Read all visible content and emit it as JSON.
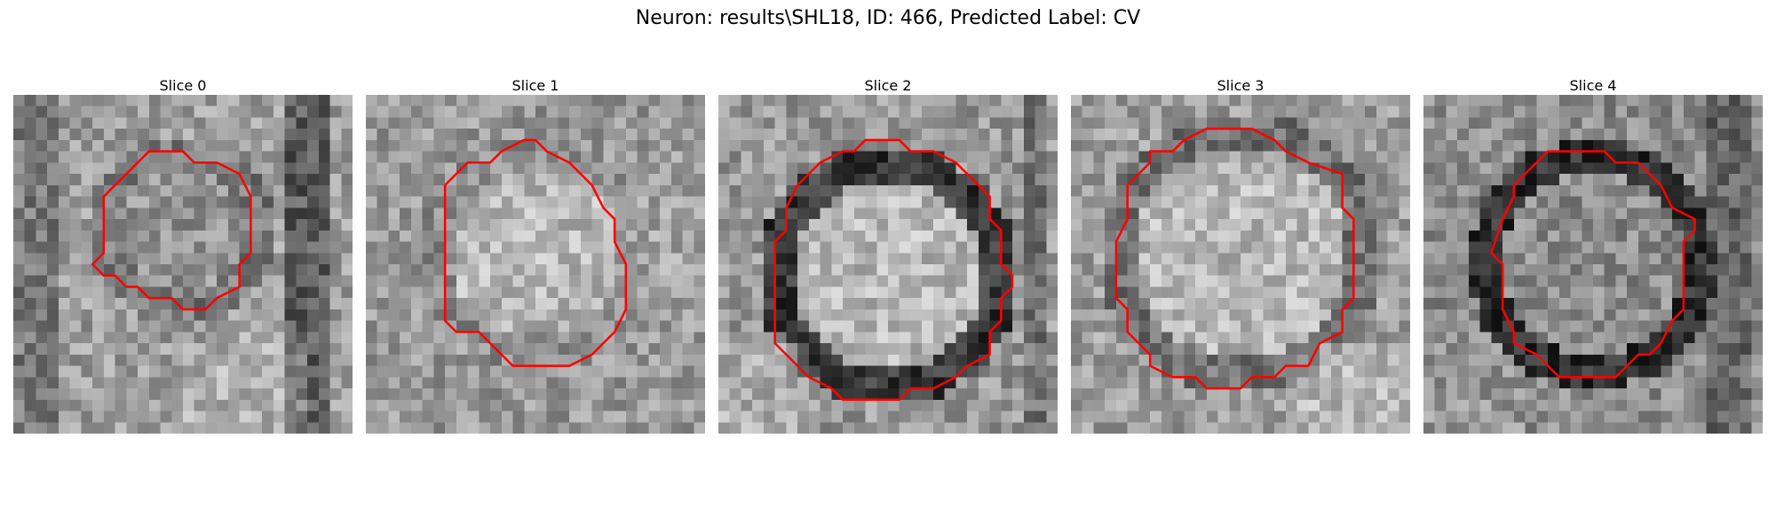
{
  "figure": {
    "title": "Neuron: results\\SHL18, ID: 466, Predicted Label: CV"
  },
  "grid_size": 30,
  "contour_color": "#ff0000",
  "slices": [
    {
      "label": "Slice 0",
      "texture": "dark vertical band on the right, dim background",
      "contour": [
        [
          12,
          5
        ],
        [
          15,
          5
        ],
        [
          16,
          6
        ],
        [
          18,
          6
        ],
        [
          20,
          7
        ],
        [
          21,
          9
        ],
        [
          21,
          12
        ],
        [
          21,
          14
        ],
        [
          20,
          15
        ],
        [
          20,
          17
        ],
        [
          18,
          18
        ],
        [
          17,
          19
        ],
        [
          15,
          19
        ],
        [
          14,
          18
        ],
        [
          12,
          18
        ],
        [
          11,
          17
        ],
        [
          10,
          17
        ],
        [
          9,
          16
        ],
        [
          8,
          16
        ],
        [
          7,
          15
        ],
        [
          8,
          14
        ],
        [
          8,
          12
        ],
        [
          8,
          9
        ],
        [
          9,
          8
        ],
        [
          10,
          7
        ],
        [
          11,
          6
        ]
      ]
    },
    {
      "label": "Slice 1",
      "texture": "bright cell interior, mottled surroundings",
      "contour": [
        [
          14,
          4
        ],
        [
          15,
          4
        ],
        [
          16,
          5
        ],
        [
          18,
          6
        ],
        [
          19,
          7
        ],
        [
          20,
          8
        ],
        [
          21,
          10
        ],
        [
          22,
          11
        ],
        [
          22,
          13
        ],
        [
          23,
          15
        ],
        [
          23,
          19
        ],
        [
          22,
          21
        ],
        [
          21,
          22
        ],
        [
          20,
          23
        ],
        [
          18,
          24
        ],
        [
          16,
          24
        ],
        [
          13,
          24
        ],
        [
          12,
          23
        ],
        [
          11,
          22
        ],
        [
          10,
          21
        ],
        [
          8,
          21
        ],
        [
          7,
          20
        ],
        [
          7,
          17
        ],
        [
          7,
          12
        ],
        [
          7,
          8
        ],
        [
          8,
          7
        ],
        [
          9,
          6
        ],
        [
          11,
          6
        ],
        [
          12,
          5
        ]
      ]
    },
    {
      "label": "Slice 2",
      "texture": "dark ring around a bright interior",
      "contour": [
        [
          13,
          4
        ],
        [
          16,
          4
        ],
        [
          17,
          5
        ],
        [
          19,
          5
        ],
        [
          21,
          6
        ],
        [
          22,
          7
        ],
        [
          23,
          8
        ],
        [
          24,
          9
        ],
        [
          24,
          11
        ],
        [
          25,
          12
        ],
        [
          25,
          15
        ],
        [
          26,
          16
        ],
        [
          26,
          17
        ],
        [
          25,
          18
        ],
        [
          25,
          20
        ],
        [
          24,
          21
        ],
        [
          24,
          23
        ],
        [
          22,
          24
        ],
        [
          21,
          25
        ],
        [
          19,
          26
        ],
        [
          17,
          26
        ],
        [
          16,
          27
        ],
        [
          14,
          27
        ],
        [
          11,
          27
        ],
        [
          10,
          26
        ],
        [
          8,
          25
        ],
        [
          7,
          24
        ],
        [
          6,
          23
        ],
        [
          5,
          22
        ],
        [
          5,
          20
        ],
        [
          5,
          18
        ],
        [
          5,
          16
        ],
        [
          5,
          13
        ],
        [
          6,
          12
        ],
        [
          6,
          10
        ],
        [
          7,
          8
        ],
        [
          8,
          7
        ],
        [
          9,
          6
        ],
        [
          11,
          5
        ],
        [
          12,
          5
        ]
      ]
    },
    {
      "label": "Slice 3",
      "texture": "large bright cell body, bright lower right",
      "contour": [
        [
          12,
          3
        ],
        [
          14,
          3
        ],
        [
          16,
          3
        ],
        [
          18,
          4
        ],
        [
          19,
          5
        ],
        [
          21,
          6
        ],
        [
          24,
          7
        ],
        [
          24,
          10
        ],
        [
          25,
          11
        ],
        [
          25,
          13
        ],
        [
          25,
          16
        ],
        [
          25,
          18
        ],
        [
          24,
          19
        ],
        [
          24,
          21
        ],
        [
          22,
          22
        ],
        [
          21,
          24
        ],
        [
          19,
          24
        ],
        [
          18,
          25
        ],
        [
          16,
          25
        ],
        [
          15,
          26
        ],
        [
          12,
          26
        ],
        [
          11,
          25
        ],
        [
          9,
          25
        ],
        [
          7,
          24
        ],
        [
          7,
          23
        ],
        [
          6,
          22
        ],
        [
          5,
          21
        ],
        [
          5,
          19
        ],
        [
          4,
          18
        ],
        [
          4,
          16
        ],
        [
          4,
          13
        ],
        [
          5,
          11
        ],
        [
          5,
          8
        ],
        [
          6,
          7
        ],
        [
          7,
          6
        ],
        [
          7,
          5
        ],
        [
          9,
          5
        ],
        [
          10,
          4
        ]
      ]
    },
    {
      "label": "Slice 4",
      "texture": "dark ring with speckled center",
      "contour": [
        [
          11,
          5
        ],
        [
          16,
          5
        ],
        [
          17,
          6
        ],
        [
          19,
          6
        ],
        [
          20,
          7
        ],
        [
          21,
          8
        ],
        [
          22,
          10
        ],
        [
          24,
          11
        ],
        [
          24,
          12
        ],
        [
          23,
          13
        ],
        [
          23,
          15
        ],
        [
          23,
          17
        ],
        [
          23,
          19
        ],
        [
          22,
          20
        ],
        [
          21,
          22
        ],
        [
          20,
          23
        ],
        [
          19,
          23
        ],
        [
          18,
          24
        ],
        [
          17,
          25
        ],
        [
          15,
          25
        ],
        [
          12,
          25
        ],
        [
          11,
          24
        ],
        [
          10,
          23
        ],
        [
          8,
          22
        ],
        [
          8,
          21
        ],
        [
          7,
          19
        ],
        [
          7,
          17
        ],
        [
          7,
          15
        ],
        [
          6,
          14
        ],
        [
          7,
          11
        ],
        [
          8,
          9
        ],
        [
          8,
          8
        ],
        [
          9,
          7
        ],
        [
          10,
          6
        ]
      ]
    }
  ]
}
